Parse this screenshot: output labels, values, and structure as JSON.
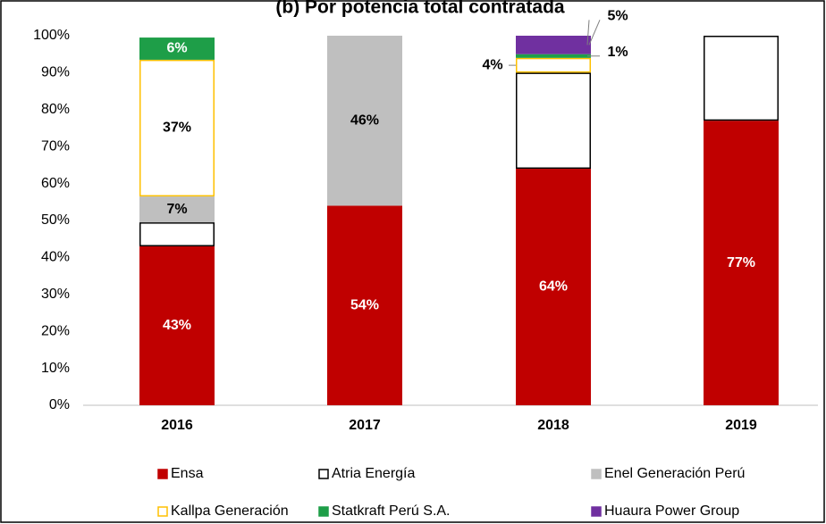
{
  "chart_data": {
    "type": "stacked_bar",
    "title": "(b) Por potencia total contratada",
    "categories": [
      "2016",
      "2017",
      "2018",
      "2019"
    ],
    "series": [
      {
        "name": "Ensa",
        "color": "#c00000",
        "edge": "#c00000",
        "values": [
          43,
          54,
          64,
          77
        ],
        "value_labels": [
          "43%",
          "54%",
          "64%",
          "77%"
        ]
      },
      {
        "name": "Atria Energía",
        "color": "#ffffff",
        "edge": "#000000",
        "values": [
          6.5,
          0,
          26,
          23
        ],
        "value_labels": [
          null,
          null,
          null,
          null
        ]
      },
      {
        "name": "Enel Generación Perú",
        "color": "#bfbfbf",
        "edge": "#bfbfbf",
        "values": [
          7,
          46,
          0,
          0
        ],
        "value_labels": [
          "7%",
          "46%",
          null,
          null
        ]
      },
      {
        "name": "Kallpa Generación",
        "color": "#ffffff",
        "edge": "#ffc000",
        "values": [
          37,
          0,
          4,
          0
        ],
        "value_labels": [
          "37%",
          null,
          "4%",
          null
        ]
      },
      {
        "name": "Statkraft Perú S.A.",
        "color": "#1e9e48",
        "edge": "#1e9e48",
        "values": [
          6,
          0,
          1,
          0
        ],
        "value_labels": [
          "6%",
          null,
          "1%",
          null
        ]
      },
      {
        "name": "Huaura Power Group",
        "color": "#7030a0",
        "edge": "#7030a0",
        "values": [
          0,
          0,
          5,
          0
        ],
        "value_labels": [
          null,
          null,
          "5%",
          null
        ]
      }
    ],
    "ylim": [
      0,
      100
    ],
    "yticks": [
      {
        "value": 0,
        "label": "0%"
      },
      {
        "value": 10,
        "label": "10%"
      },
      {
        "value": 20,
        "label": "20%"
      },
      {
        "value": 30,
        "label": "30%"
      },
      {
        "value": 40,
        "label": "40%"
      },
      {
        "value": 50,
        "label": "50%"
      },
      {
        "value": 60,
        "label": "60%"
      },
      {
        "value": 70,
        "label": "70%"
      },
      {
        "value": 80,
        "label": "80%"
      },
      {
        "value": 90,
        "label": "90%"
      },
      {
        "value": 100,
        "label": "100%"
      }
    ],
    "grid": false,
    "legend": "bottom"
  }
}
